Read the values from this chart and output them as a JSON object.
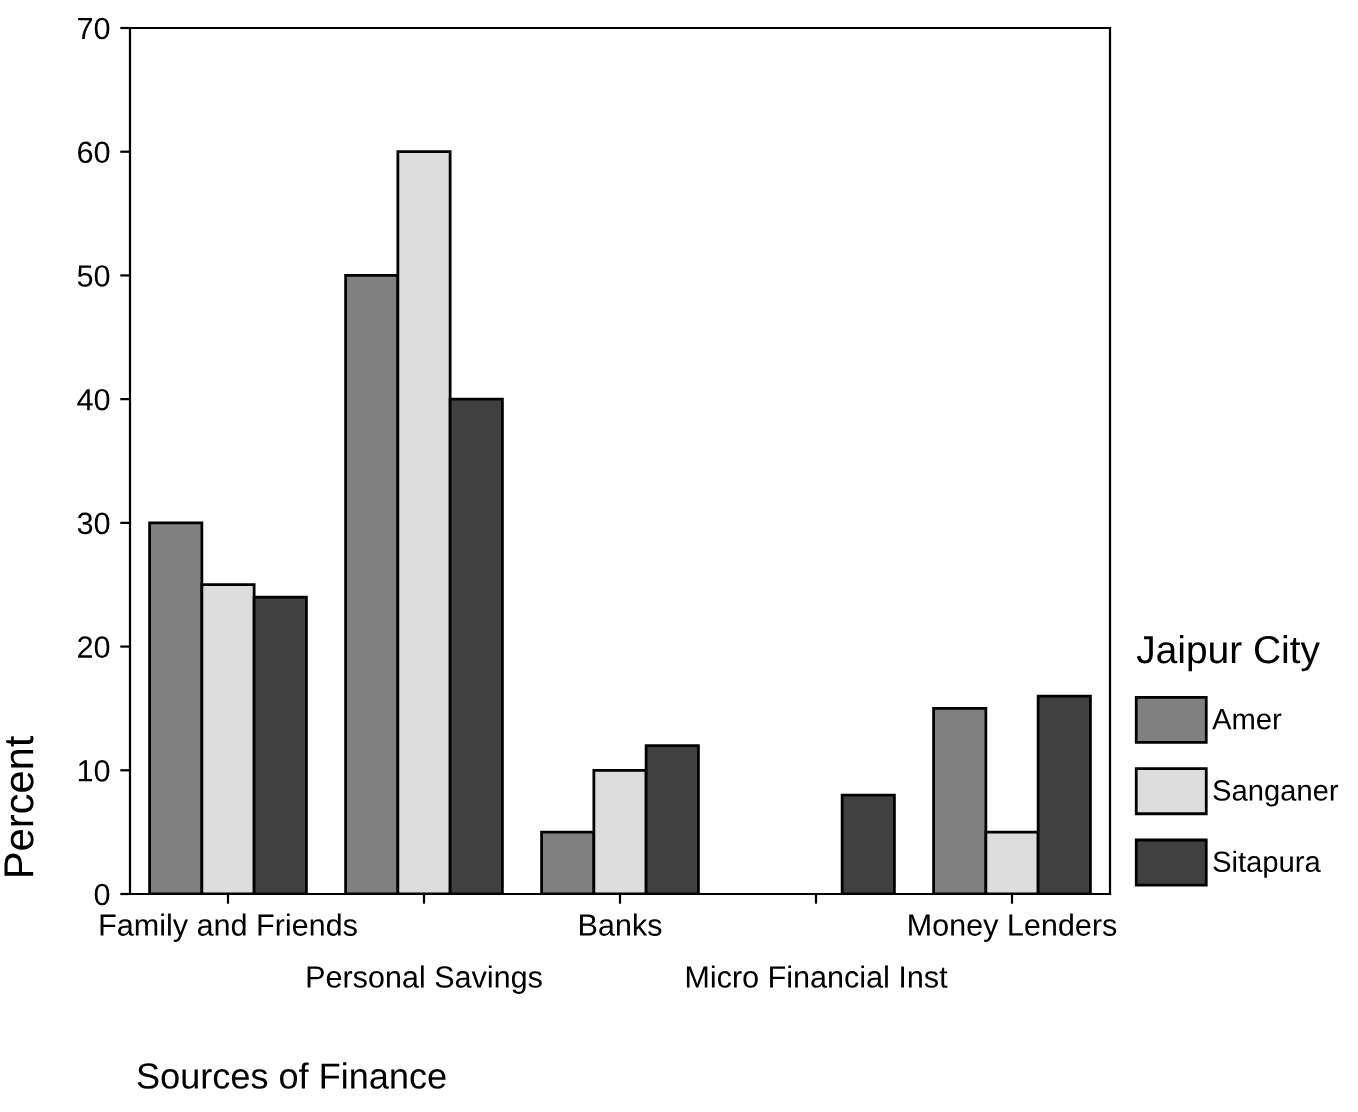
{
  "chart_data": {
    "type": "bar",
    "xlabel": "Sources of Finance",
    "ylabel": "Percent",
    "legend_title": "Jaipur City",
    "categories": [
      "Family and Friends",
      "Personal Savings",
      "Banks",
      "Micro Financial Inst",
      "Money Lenders"
    ],
    "series": [
      {
        "name": "Amer",
        "color": "#808080",
        "values": [
          30,
          50,
          5,
          null,
          15
        ]
      },
      {
        "name": "Sanganer",
        "color": "#dcdcdc",
        "values": [
          25,
          60,
          10,
          null,
          5
        ]
      },
      {
        "name": "Sitapura",
        "color": "#404040",
        "values": [
          24,
          40,
          12,
          8,
          16
        ]
      }
    ],
    "ylim": [
      0,
      70
    ],
    "yticks": [
      0,
      10,
      20,
      30,
      40,
      50,
      60,
      70
    ],
    "grid": false,
    "legend": "right"
  }
}
